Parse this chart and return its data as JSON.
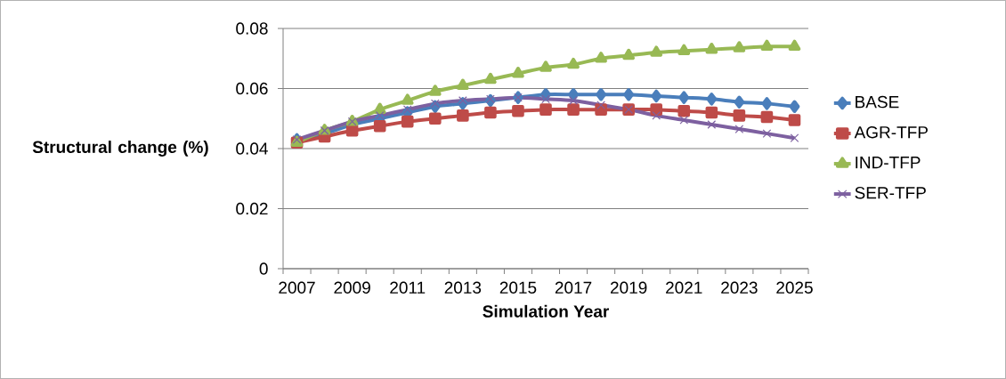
{
  "chart_data": {
    "type": "line",
    "xlabel": "Simulation Year",
    "ylabel": "Structural change (%)",
    "categories": [
      "2007",
      null,
      "2009",
      null,
      "2011",
      null,
      "2013",
      null,
      "2015",
      null,
      "2017",
      null,
      "2019",
      null,
      "2021",
      null,
      "2023",
      null,
      "2025"
    ],
    "ylim": [
      0,
      0.08
    ],
    "yticks": [
      0,
      0.02,
      0.04,
      0.06,
      0.08
    ],
    "grid": "y",
    "legend": "right",
    "series": [
      {
        "name": "BASE",
        "color": "#4a7ebb",
        "marker": "diamond",
        "values": [
          0.043,
          0.045,
          0.048,
          0.05,
          0.052,
          0.054,
          0.055,
          0.056,
          0.057,
          0.058,
          0.058,
          0.058,
          0.058,
          0.0575,
          0.057,
          0.0565,
          0.0555,
          0.055,
          0.054
        ]
      },
      {
        "name": "AGR-TFP",
        "color": "#be4b48",
        "marker": "square",
        "values": [
          0.042,
          0.044,
          0.046,
          0.0475,
          0.049,
          0.05,
          0.051,
          0.052,
          0.0525,
          0.053,
          0.053,
          0.053,
          0.053,
          0.053,
          0.0525,
          0.052,
          0.051,
          0.0505,
          0.0495
        ]
      },
      {
        "name": "IND-TFP",
        "color": "#98b954",
        "marker": "triangle",
        "values": [
          0.042,
          0.046,
          0.049,
          0.053,
          0.056,
          0.059,
          0.061,
          0.063,
          0.065,
          0.067,
          0.068,
          0.07,
          0.071,
          0.072,
          0.0725,
          0.073,
          0.0735,
          0.074,
          0.074
        ]
      },
      {
        "name": "SER-TFP",
        "color": "#7d60a0",
        "marker": "cross",
        "values": [
          0.043,
          0.046,
          0.049,
          0.051,
          0.053,
          0.055,
          0.056,
          0.0565,
          0.057,
          0.0565,
          0.056,
          0.0545,
          0.053,
          0.051,
          0.0495,
          0.048,
          0.0465,
          0.045,
          0.0435
        ]
      }
    ]
  }
}
